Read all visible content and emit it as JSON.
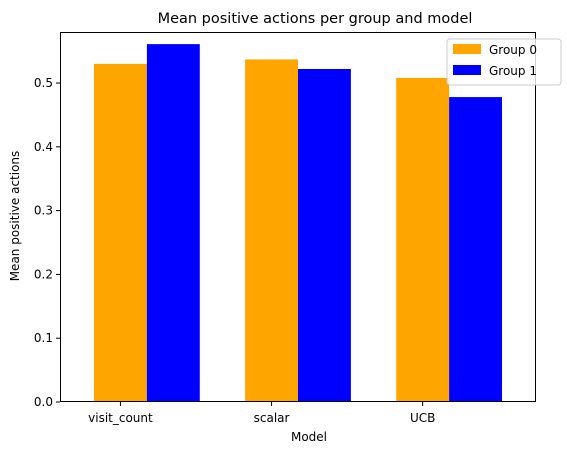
{
  "chart_data": {
    "type": "bar",
    "title": "Mean positive actions per group and model",
    "xlabel": "Model",
    "ylabel": "Mean positive actions",
    "categories": [
      "visit_count",
      "scalar",
      "UCB"
    ],
    "series": [
      {
        "name": "Group 0",
        "color": "#ffa500",
        "values": [
          0.53,
          0.537,
          0.508
        ]
      },
      {
        "name": "Group 1",
        "color": "#0000ff",
        "values": [
          0.561,
          0.522,
          0.478
        ]
      }
    ],
    "ylim": [
      0,
      0.58
    ],
    "yticks": [
      0.0,
      0.1,
      0.2,
      0.3,
      0.4,
      0.5
    ],
    "ytick_labels": [
      "0.0",
      "0.1",
      "0.2",
      "0.3",
      "0.4",
      "0.5"
    ],
    "grid": false,
    "legend_position": "top-right"
  }
}
